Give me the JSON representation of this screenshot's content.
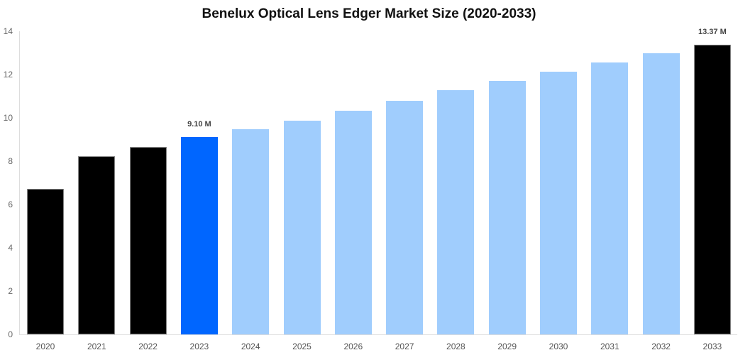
{
  "chart_data": {
    "type": "bar",
    "title": "Benelux Optical Lens Edger Market Size (2020-2033)",
    "xlabel": "",
    "ylabel": "",
    "ylim": [
      0,
      14
    ],
    "yticks": [
      0,
      2,
      4,
      6,
      8,
      10,
      12,
      14
    ],
    "grid": false,
    "legend": null,
    "categories": [
      "2020",
      "2021",
      "2022",
      "2023",
      "2024",
      "2025",
      "2026",
      "2027",
      "2028",
      "2029",
      "2030",
      "2031",
      "2032",
      "2033"
    ],
    "values": [
      6.72,
      8.23,
      8.66,
      9.1,
      9.48,
      9.87,
      10.33,
      10.79,
      11.28,
      11.7,
      12.13,
      12.56,
      12.98,
      13.37
    ],
    "bar_colors": [
      "#000000",
      "#000000",
      "#000000",
      "#0066ff",
      "#a0cdfd",
      "#a0cdfd",
      "#a0cdfd",
      "#a0cdfd",
      "#a0cdfd",
      "#a0cdfd",
      "#a0cdfd",
      "#a0cdfd",
      "#a0cdfd",
      "#000000"
    ],
    "annotations": [
      {
        "category": "2023",
        "text": "9.10 M"
      },
      {
        "category": "2033",
        "text": "13.37 M"
      }
    ]
  }
}
